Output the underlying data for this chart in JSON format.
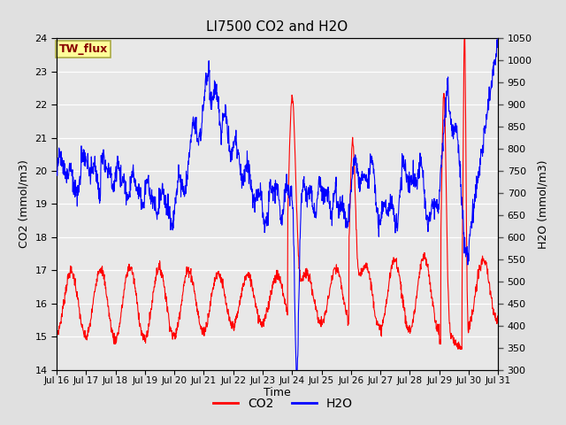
{
  "title": "LI7500 CO2 and H2O",
  "xlabel": "Time",
  "ylabel_left": "CO2 (mmol/m3)",
  "ylabel_right": "H2O (mmol/m3)",
  "x_tick_labels": [
    "Jul 16",
    "Jul 17",
    "Jul 18",
    "Jul 19",
    "Jul 20",
    "Jul 21",
    "Jul 22",
    "Jul 23",
    "Jul 24",
    "Jul 25",
    "Jul 26",
    "Jul 27",
    "Jul 28",
    "Jul 29",
    "Jul 30",
    "Jul 31"
  ],
  "ylim_left": [
    14.0,
    24.0
  ],
  "ylim_right": [
    300,
    1050
  ],
  "yticks_left": [
    14.0,
    15.0,
    16.0,
    17.0,
    18.0,
    19.0,
    20.0,
    21.0,
    22.0,
    23.0,
    24.0
  ],
  "yticks_right": [
    300,
    350,
    400,
    450,
    500,
    550,
    600,
    650,
    700,
    750,
    800,
    850,
    900,
    950,
    1000,
    1050
  ],
  "co2_color": "#FF0000",
  "h2o_color": "#0000FF",
  "fig_bg_color": "#E0E0E0",
  "plot_bg_color": "#E8E8E8",
  "grid_color": "#FFFFFF",
  "legend_label_co2": "CO2",
  "legend_label_h2o": "H2O",
  "annotation_text": "TW_flux",
  "annotation_bg": "#FFFF99",
  "annotation_border": "#AAAA44",
  "annotation_color": "#880000",
  "n_points": 1500,
  "seed": 7
}
